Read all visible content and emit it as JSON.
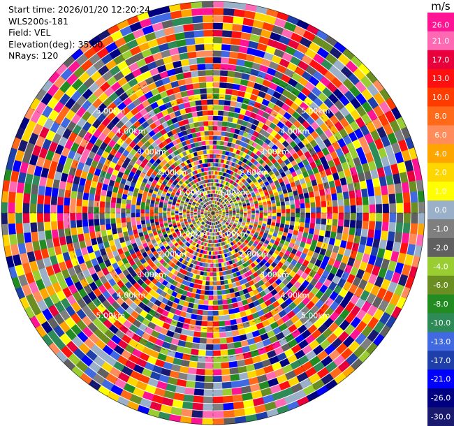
{
  "info": {
    "start_time": "Start time: 2026/01/20 12:20:24",
    "site": "WLS200s-181",
    "field": "Field: VEL",
    "elevation": "Elevation(deg): 35.00",
    "nrays": "NRays: 120"
  },
  "colorbar": {
    "unit": "m/s",
    "labels": [
      "26.0",
      "21.0",
      "17.0",
      "13.0",
      "10.0",
      "8.0",
      "6.0",
      "4.0",
      "2.0",
      "1.0",
      "0.0",
      "-1.0",
      "-2.0",
      "-4.0",
      "-6.0",
      "-8.0",
      "-10.0",
      "-13.0",
      "-17.0",
      "-21.0",
      "-26.0",
      "-30.0"
    ],
    "colors": [
      "#ff1493",
      "#ff69b4",
      "#e8003c",
      "#ff1010",
      "#ff3c00",
      "#ff6a1a",
      "#ff8c5a",
      "#ffa500",
      "#ffd700",
      "#ffff00",
      "#9ab0c8",
      "#7f7f7f",
      "#606060",
      "#9acd32",
      "#6b8e23",
      "#228b22",
      "#2e8b57",
      "#4169e1",
      "#1e3faa",
      "#0000ff",
      "#000080",
      "#191970"
    ]
  },
  "chart_data": {
    "type": "heatmap",
    "projection": "polar PPI",
    "field": "VEL",
    "units": "m/s",
    "nrays": 120,
    "elevation_deg": 35.0,
    "range_rings_km": [
      1.0,
      2.0,
      3.0,
      4.0,
      5.0
    ],
    "range_ring_labels": [
      "1.00km",
      "2.00km",
      "3.00km",
      "4.00km",
      "5.00km"
    ],
    "max_range_km": 7.3,
    "color_levels": [
      -30.0,
      -26.0,
      -21.0,
      -17.0,
      -13.0,
      -10.0,
      -8.0,
      -6.0,
      -4.0,
      -2.0,
      -1.0,
      0.0,
      1.0,
      2.0,
      4.0,
      6.0,
      8.0,
      10.0,
      13.0,
      17.0,
      21.0,
      26.0
    ]
  }
}
